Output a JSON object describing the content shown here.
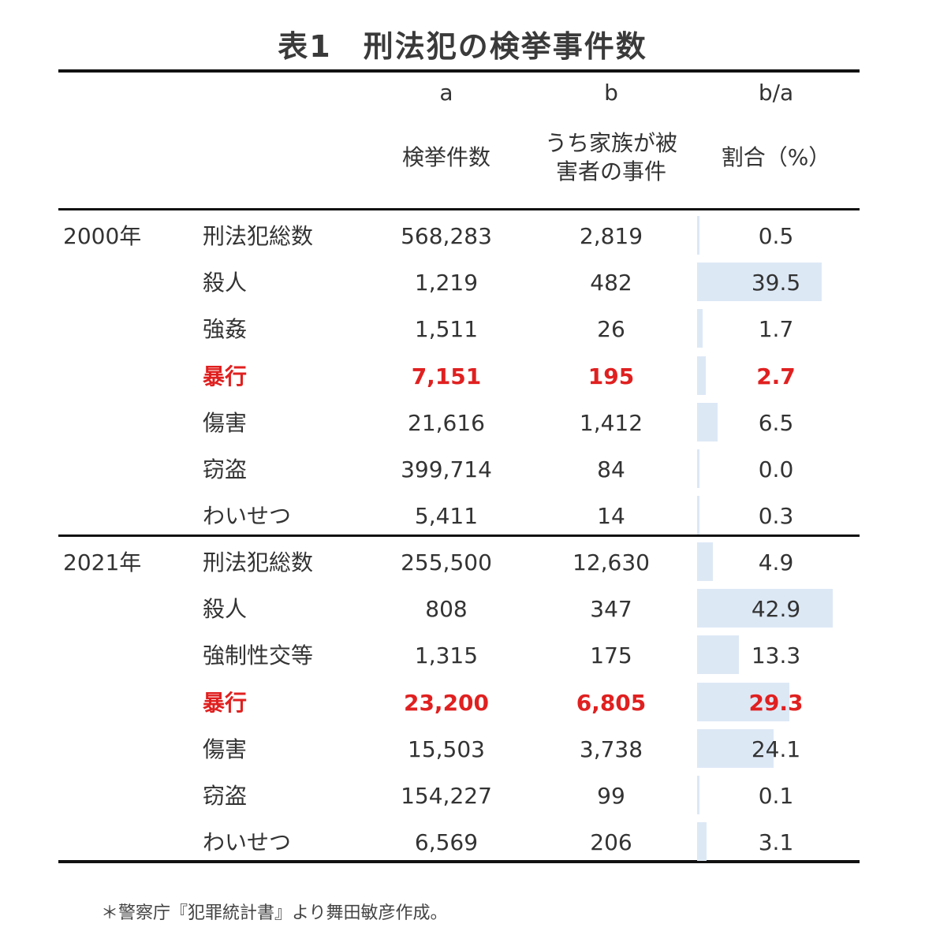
{
  "title": "表1　刑法犯の検挙事件数",
  "header": {
    "col_a_letter": "a",
    "col_b_letter": "b",
    "col_ratio_letter": "b/a",
    "col_a_label": "検挙件数",
    "col_b_label_line1": "うち家族が被",
    "col_b_label_line2": "害者の事件",
    "col_ratio_label": "割合（%）"
  },
  "groups": [
    {
      "year": "2000年",
      "rows": [
        {
          "crime": "刑法犯総数",
          "a": "568,283",
          "b": "2,819",
          "ratio": "0.5",
          "ratio_value": 0.5,
          "highlight": false
        },
        {
          "crime": "殺人",
          "a": "1,219",
          "b": "482",
          "ratio": "39.5",
          "ratio_value": 39.5,
          "highlight": false
        },
        {
          "crime": "強姦",
          "a": "1,511",
          "b": "26",
          "ratio": "1.7",
          "ratio_value": 1.7,
          "highlight": false
        },
        {
          "crime": "暴行",
          "a": "7,151",
          "b": "195",
          "ratio": "2.7",
          "ratio_value": 2.7,
          "highlight": true
        },
        {
          "crime": "傷害",
          "a": "21,616",
          "b": "1,412",
          "ratio": "6.5",
          "ratio_value": 6.5,
          "highlight": false
        },
        {
          "crime": "窃盗",
          "a": "399,714",
          "b": "84",
          "ratio": "0.0",
          "ratio_value": 0.0,
          "highlight": false
        },
        {
          "crime": "わいせつ",
          "a": "5,411",
          "b": "14",
          "ratio": "0.3",
          "ratio_value": 0.3,
          "highlight": false
        }
      ]
    },
    {
      "year": "2021年",
      "rows": [
        {
          "crime": "刑法犯総数",
          "a": "255,500",
          "b": "12,630",
          "ratio": "4.9",
          "ratio_value": 4.9,
          "highlight": false
        },
        {
          "crime": "殺人",
          "a": "808",
          "b": "347",
          "ratio": "42.9",
          "ratio_value": 42.9,
          "highlight": false
        },
        {
          "crime": "強制性交等",
          "a": "1,315",
          "b": "175",
          "ratio": "13.3",
          "ratio_value": 13.3,
          "highlight": false
        },
        {
          "crime": "暴行",
          "a": "23,200",
          "b": "6,805",
          "ratio": "29.3",
          "ratio_value": 29.3,
          "highlight": true
        },
        {
          "crime": "傷害",
          "a": "15,503",
          "b": "3,738",
          "ratio": "24.1",
          "ratio_value": 24.1,
          "highlight": false
        },
        {
          "crime": "窃盗",
          "a": "154,227",
          "b": "99",
          "ratio": "0.1",
          "ratio_value": 0.1,
          "highlight": false
        },
        {
          "crime": "わいせつ",
          "a": "6,569",
          "b": "206",
          "ratio": "3.1",
          "ratio_value": 3.1,
          "highlight": false
        }
      ]
    }
  ],
  "colors": {
    "highlight_text": "#e02020",
    "data_bar": "#dde8f5",
    "rule": "#111111"
  },
  "note": "＊警察庁『犯罪統計書』より舞田敏彦作成。"
}
